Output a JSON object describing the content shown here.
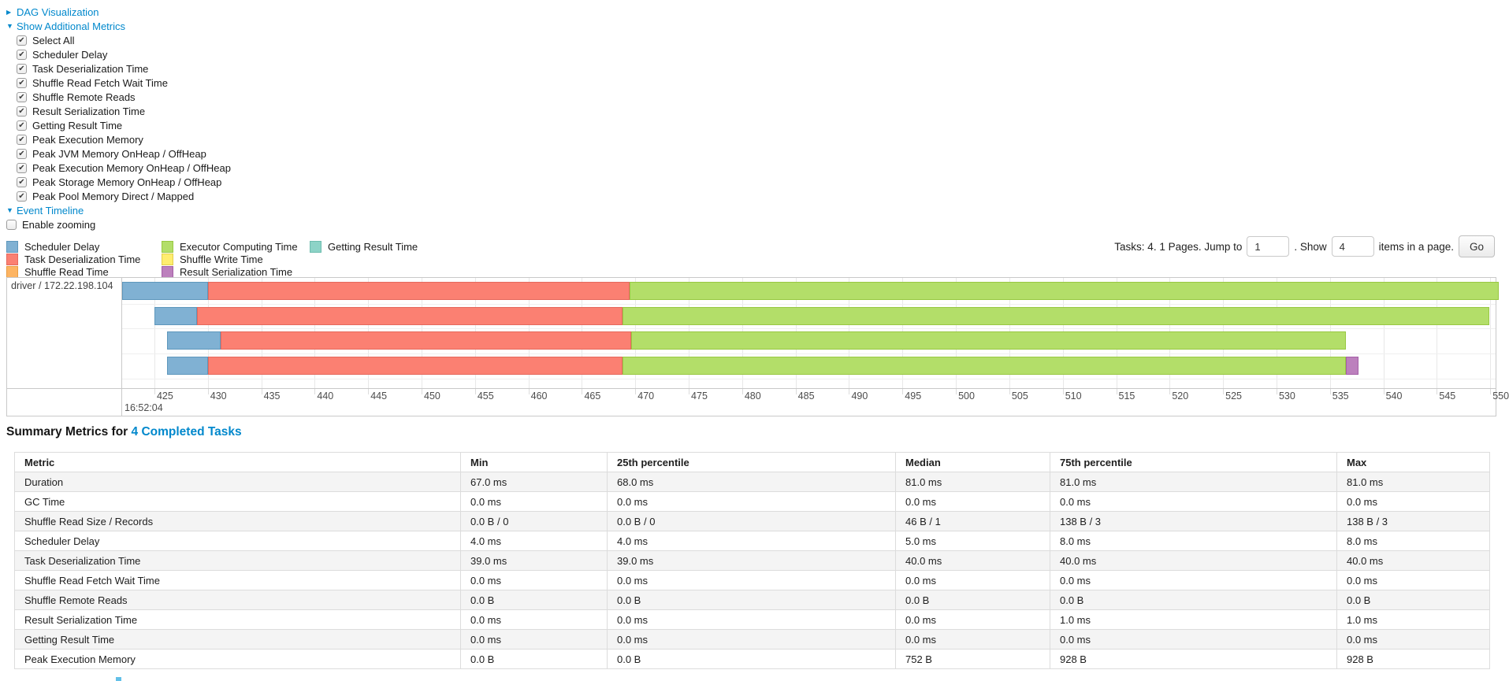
{
  "icons": {
    "collapsed_caret": "▶",
    "expanded_caret": "▼",
    "check": "✔"
  },
  "controls": {
    "dag_link": "DAG Visualization",
    "metrics_link": "Show Additional Metrics",
    "timeline_link": "Event Timeline",
    "metric_checkboxes": [
      {
        "label": "Select All",
        "checked": true
      },
      {
        "label": "Scheduler Delay",
        "checked": true
      },
      {
        "label": "Task Deserialization Time",
        "checked": true
      },
      {
        "label": "Shuffle Read Fetch Wait Time",
        "checked": true
      },
      {
        "label": "Shuffle Remote Reads",
        "checked": true
      },
      {
        "label": "Result Serialization Time",
        "checked": true
      },
      {
        "label": "Getting Result Time",
        "checked": true
      },
      {
        "label": "Peak Execution Memory",
        "checked": true
      },
      {
        "label": "Peak JVM Memory OnHeap / OffHeap",
        "checked": true
      },
      {
        "label": "Peak Execution Memory OnHeap / OffHeap",
        "checked": true
      },
      {
        "label": "Peak Storage Memory OnHeap / OffHeap",
        "checked": true
      },
      {
        "label": "Peak Pool Memory Direct / Mapped",
        "checked": true
      }
    ],
    "enable_zooming_label": "Enable zooming",
    "enable_zooming_checked": false
  },
  "pagination": {
    "summary": "Tasks: 4. 1 Pages. Jump to",
    "jump_value": "1",
    "show_label": ". Show",
    "show_value": "4",
    "items_suffix": "items in a page.",
    "go_label": "Go"
  },
  "chart_data": {
    "type": "timeline",
    "row_label": "driver / 172.22.198.104",
    "x_axis": {
      "domain": [
        421.98,
        550.5
      ],
      "tick_start": 425,
      "tick_end": 550,
      "tick_step": 5,
      "major_label": "16:52:04",
      "grid": true
    },
    "legend": [
      {
        "type": "scheduler_delay",
        "label": "Scheduler Delay",
        "color": "#80B1D3",
        "border": "#5E97BC"
      },
      {
        "type": "task_deserialization",
        "label": "Task Deserialization Time",
        "color": "#FB8072",
        "border": "#E5685C"
      },
      {
        "type": "shuffle_read",
        "label": "Shuffle Read Time",
        "color": "#FDB462",
        "border": "#E89C42"
      },
      {
        "type": "executor_computing",
        "label": "Executor Computing Time",
        "color": "#B3DE69",
        "border": "#98C842"
      },
      {
        "type": "shuffle_write",
        "label": "Shuffle Write Time",
        "color": "#FFED6F",
        "border": "#E3CE4B"
      },
      {
        "type": "result_serialization",
        "label": "Result Serialization Time",
        "color": "#BC80BD",
        "border": "#A45FA6"
      },
      {
        "type": "getting_result",
        "label": "Getting Result Time",
        "color": "#8DD3C7",
        "border": "#6DBDAF"
      }
    ],
    "tasks": [
      {
        "segments": [
          {
            "type": "scheduler_delay",
            "start": 421.98,
            "end": 430.0
          },
          {
            "type": "task_deserialization",
            "start": 430.0,
            "end": 469.5
          },
          {
            "type": "executor_computing",
            "start": 469.5,
            "end": 550.8
          }
        ]
      },
      {
        "segments": [
          {
            "type": "scheduler_delay",
            "start": 425.0,
            "end": 429.0
          },
          {
            "type": "task_deserialization",
            "start": 429.0,
            "end": 468.8
          },
          {
            "type": "executor_computing",
            "start": 468.8,
            "end": 549.9
          }
        ]
      },
      {
        "segments": [
          {
            "type": "scheduler_delay",
            "start": 426.2,
            "end": 431.2
          },
          {
            "type": "task_deserialization",
            "start": 431.2,
            "end": 469.6
          },
          {
            "type": "executor_computing",
            "start": 469.6,
            "end": 536.5
          }
        ]
      },
      {
        "segments": [
          {
            "type": "scheduler_delay",
            "start": 426.2,
            "end": 430.0
          },
          {
            "type": "task_deserialization",
            "start": 430.0,
            "end": 468.8
          },
          {
            "type": "executor_computing",
            "start": 468.8,
            "end": 536.5
          },
          {
            "type": "result_serialization",
            "start": 536.5,
            "end": 537.7
          }
        ]
      }
    ]
  },
  "summary": {
    "title_prefix": "Summary Metrics for",
    "title_link": "4 Completed Tasks"
  },
  "table": {
    "columns": [
      "Metric",
      "Min",
      "25th percentile",
      "Median",
      "75th percentile",
      "Max"
    ],
    "rows": [
      {
        "metric": "Duration",
        "values": [
          "67.0 ms",
          "68.0 ms",
          "81.0 ms",
          "81.0 ms",
          "81.0 ms"
        ]
      },
      {
        "metric": "GC Time",
        "values": [
          "0.0 ms",
          "0.0 ms",
          "0.0 ms",
          "0.0 ms",
          "0.0 ms"
        ]
      },
      {
        "metric": "Shuffle Read Size / Records",
        "values": [
          "0.0 B / 0",
          "0.0 B / 0",
          "46 B / 1",
          "138 B / 3",
          "138 B / 3"
        ]
      },
      {
        "metric": "Scheduler Delay",
        "values": [
          "4.0 ms",
          "4.0 ms",
          "5.0 ms",
          "8.0 ms",
          "8.0 ms"
        ]
      },
      {
        "metric": "Task Deserialization Time",
        "values": [
          "39.0 ms",
          "39.0 ms",
          "40.0 ms",
          "40.0 ms",
          "40.0 ms"
        ]
      },
      {
        "metric": "Shuffle Read Fetch Wait Time",
        "values": [
          "0.0 ms",
          "0.0 ms",
          "0.0 ms",
          "0.0 ms",
          "0.0 ms"
        ]
      },
      {
        "metric": "Shuffle Remote Reads",
        "values": [
          "0.0 B",
          "0.0 B",
          "0.0 B",
          "0.0 B",
          "0.0 B"
        ]
      },
      {
        "metric": "Result Serialization Time",
        "values": [
          "0.0 ms",
          "0.0 ms",
          "0.0 ms",
          "1.0 ms",
          "1.0 ms"
        ]
      },
      {
        "metric": "Getting Result Time",
        "values": [
          "0.0 ms",
          "0.0 ms",
          "0.0 ms",
          "0.0 ms",
          "0.0 ms"
        ]
      },
      {
        "metric": "Peak Execution Memory",
        "values": [
          "0.0 B",
          "0.0 B",
          "752 B",
          "928 B",
          "928 B"
        ]
      }
    ]
  }
}
